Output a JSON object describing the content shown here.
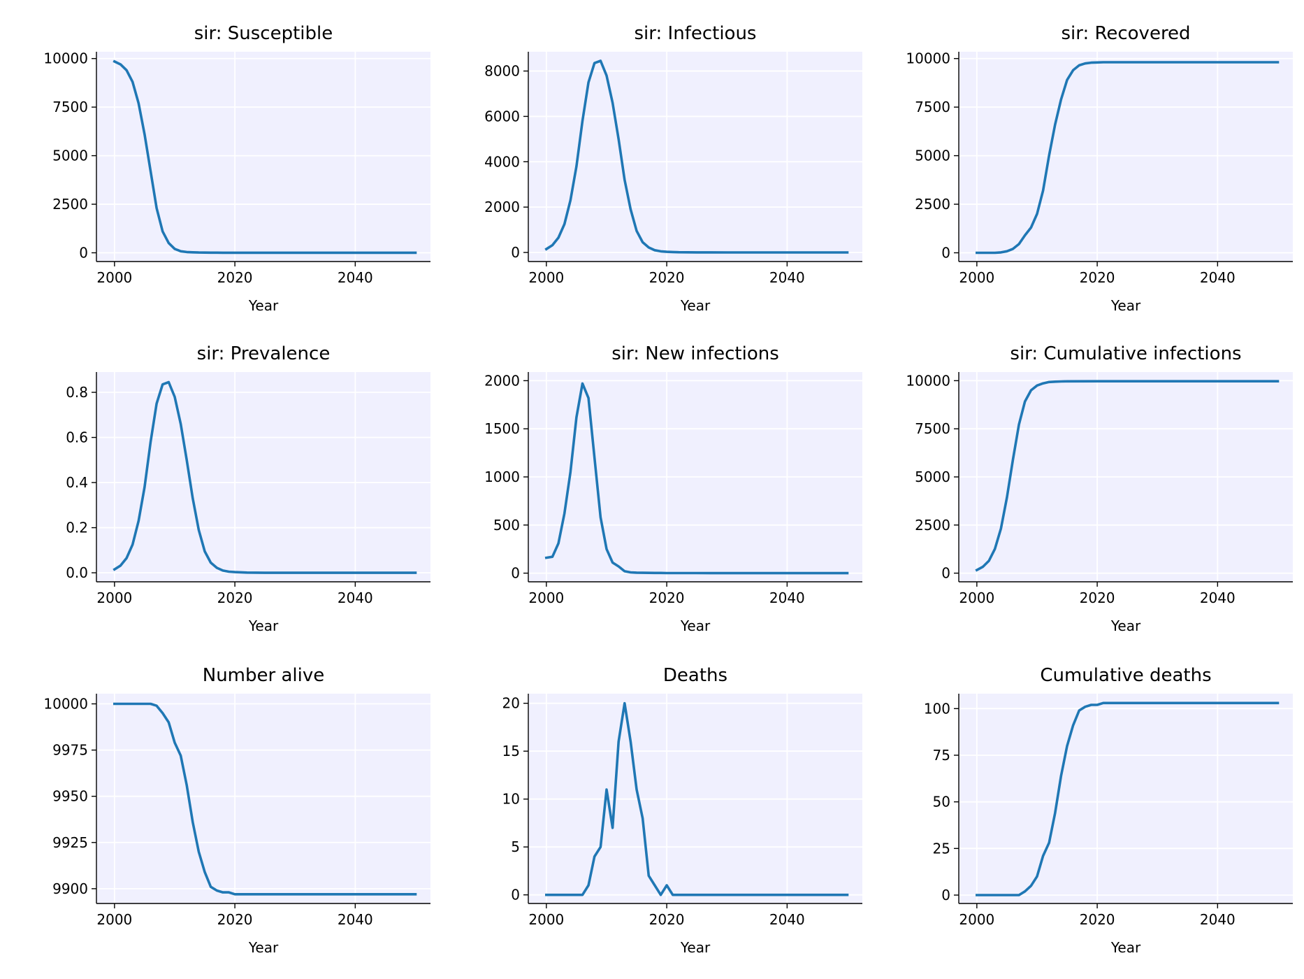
{
  "chart_data": [
    {
      "type": "line",
      "title": "sir: Susceptible",
      "xlabel": "Year",
      "ylabel": "",
      "xlim": [
        1997,
        2052.5
      ],
      "ylim": [
        -450,
        10350
      ],
      "xticks": [
        2000,
        2020,
        2040
      ],
      "yticks": [
        0,
        2500,
        5000,
        7500,
        10000
      ],
      "ytick_labels": [
        "0",
        "2500",
        "5000",
        "7500",
        "10000"
      ],
      "grid": true,
      "x": [
        2000,
        2001,
        2002,
        2003,
        2004,
        2005,
        2006,
        2007,
        2008,
        2009,
        2010,
        2011,
        2012,
        2013,
        2014,
        2015,
        2016,
        2017,
        2018,
        2019,
        2020,
        2025,
        2030,
        2035,
        2040,
        2045,
        2050
      ],
      "y": [
        9850,
        9700,
        9400,
        8800,
        7700,
        6100,
        4200,
        2300,
        1100,
        500,
        200,
        80,
        40,
        25,
        15,
        10,
        8,
        6,
        5,
        4,
        3,
        2,
        2,
        2,
        2,
        2,
        2
      ]
    },
    {
      "type": "line",
      "title": "sir: Infectious",
      "xlabel": "Year",
      "ylabel": "",
      "xlim": [
        1997,
        2052.5
      ],
      "ylim": [
        -400,
        8850
      ],
      "xticks": [
        2000,
        2020,
        2040
      ],
      "yticks": [
        0,
        2000,
        4000,
        6000,
        8000
      ],
      "ytick_labels": [
        "0",
        "2000",
        "4000",
        "6000",
        "8000"
      ],
      "grid": true,
      "x": [
        2000,
        2001,
        2002,
        2003,
        2004,
        2005,
        2006,
        2007,
        2008,
        2009,
        2010,
        2011,
        2012,
        2013,
        2014,
        2015,
        2016,
        2017,
        2018,
        2019,
        2020,
        2021,
        2022,
        2025,
        2030,
        2035,
        2040,
        2045,
        2050
      ],
      "y": [
        150,
        320,
        650,
        1250,
        2300,
        3800,
        5800,
        7500,
        8350,
        8450,
        7800,
        6600,
        5000,
        3200,
        1900,
        950,
        450,
        220,
        100,
        50,
        30,
        20,
        10,
        5,
        2,
        1,
        1,
        1,
        1
      ]
    },
    {
      "type": "line",
      "title": "sir: Recovered",
      "xlabel": "Year",
      "ylabel": "",
      "xlim": [
        1997,
        2052.5
      ],
      "ylim": [
        -450,
        10350
      ],
      "xticks": [
        2000,
        2020,
        2040
      ],
      "yticks": [
        0,
        2500,
        5000,
        7500,
        10000
      ],
      "ytick_labels": [
        "0",
        "2500",
        "5000",
        "7500",
        "10000"
      ],
      "grid": true,
      "x": [
        2000,
        2001,
        2002,
        2003,
        2004,
        2005,
        2006,
        2007,
        2008,
        2009,
        2010,
        2011,
        2012,
        2013,
        2014,
        2015,
        2016,
        2017,
        2018,
        2019,
        2020,
        2021,
        2025,
        2030,
        2035,
        2040,
        2045,
        2050
      ],
      "y": [
        0,
        0,
        0,
        0,
        20,
        80,
        200,
        450,
        900,
        1300,
        2000,
        3200,
        5000,
        6600,
        7900,
        8900,
        9400,
        9650,
        9750,
        9790,
        9800,
        9810,
        9810,
        9810,
        9810,
        9810,
        9810,
        9810
      ]
    },
    {
      "type": "line",
      "title": "sir: Prevalence",
      "xlabel": "Year",
      "ylabel": "",
      "xlim": [
        1997,
        2052.5
      ],
      "ylim": [
        -0.04,
        0.89
      ],
      "xticks": [
        2000,
        2020,
        2040
      ],
      "yticks": [
        0,
        0.2,
        0.4,
        0.6,
        0.8
      ],
      "ytick_labels": [
        "0.0",
        "0.2",
        "0.4",
        "0.6",
        "0.8"
      ],
      "grid": true,
      "x": [
        2000,
        2001,
        2002,
        2003,
        2004,
        2005,
        2006,
        2007,
        2008,
        2009,
        2010,
        2011,
        2012,
        2013,
        2014,
        2015,
        2016,
        2017,
        2018,
        2019,
        2020,
        2022,
        2025,
        2030,
        2035,
        2040,
        2045,
        2050
      ],
      "y": [
        0.015,
        0.032,
        0.065,
        0.125,
        0.23,
        0.38,
        0.58,
        0.75,
        0.835,
        0.845,
        0.78,
        0.66,
        0.5,
        0.33,
        0.19,
        0.095,
        0.045,
        0.022,
        0.01,
        0.005,
        0.003,
        0.001,
        0,
        0,
        0,
        0,
        0,
        0
      ]
    },
    {
      "type": "line",
      "title": "sir: New infections",
      "xlabel": "Year",
      "ylabel": "",
      "xlim": [
        1997,
        2052.5
      ],
      "ylim": [
        -90,
        2090
      ],
      "xticks": [
        2000,
        2020,
        2040
      ],
      "yticks": [
        0,
        500,
        1000,
        1500,
        2000
      ],
      "ytick_labels": [
        "0",
        "500",
        "1000",
        "1500",
        "2000"
      ],
      "grid": true,
      "x": [
        2000,
        2001,
        2002,
        2003,
        2004,
        2005,
        2006,
        2007,
        2008,
        2009,
        2010,
        2011,
        2012,
        2013,
        2014,
        2015,
        2016,
        2017,
        2018,
        2019,
        2020,
        2025,
        2030,
        2035,
        2040,
        2045,
        2050
      ],
      "y": [
        160,
        170,
        310,
        620,
        1050,
        1620,
        1970,
        1820,
        1200,
        580,
        250,
        110,
        70,
        20,
        8,
        5,
        4,
        3,
        2,
        2,
        1,
        1,
        0,
        0,
        0,
        0,
        0
      ]
    },
    {
      "type": "line",
      "title": "sir: Cumulative infections",
      "xlabel": "Year",
      "ylabel": "",
      "xlim": [
        1997,
        2052.5
      ],
      "ylim": [
        -450,
        10450
      ],
      "xticks": [
        2000,
        2020,
        2040
      ],
      "yticks": [
        0,
        2500,
        5000,
        7500,
        10000
      ],
      "ytick_labels": [
        "0",
        "2500",
        "5000",
        "7500",
        "10000"
      ],
      "grid": true,
      "x": [
        2000,
        2001,
        2002,
        2003,
        2004,
        2005,
        2006,
        2007,
        2008,
        2009,
        2010,
        2011,
        2012,
        2013,
        2014,
        2015,
        2020,
        2025,
        2030,
        2035,
        2040,
        2045,
        2050
      ],
      "y": [
        160,
        330,
        640,
        1260,
        2310,
        3930,
        5900,
        7720,
        8920,
        9500,
        9750,
        9860,
        9930,
        9950,
        9960,
        9965,
        9970,
        9970,
        9970,
        9970,
        9970,
        9970,
        9970
      ]
    },
    {
      "type": "line",
      "title": "Number alive",
      "xlabel": "Year",
      "ylabel": "",
      "xlim": [
        1997,
        2052.5
      ],
      "ylim": [
        9892,
        10005.5
      ],
      "xticks": [
        2000,
        2020,
        2040
      ],
      "yticks": [
        9900,
        9925,
        9950,
        9975,
        10000
      ],
      "ytick_labels": [
        "9900",
        "9925",
        "9950",
        "9975",
        "10000"
      ],
      "grid": true,
      "x": [
        2000,
        2001,
        2002,
        2003,
        2004,
        2005,
        2006,
        2007,
        2008,
        2009,
        2010,
        2011,
        2012,
        2013,
        2014,
        2015,
        2016,
        2017,
        2018,
        2019,
        2020,
        2021,
        2025,
        2030,
        2035,
        2040,
        2045,
        2050
      ],
      "y": [
        10000,
        10000,
        10000,
        10000,
        10000,
        10000,
        10000,
        9999,
        9995,
        9990,
        9979,
        9972,
        9956,
        9936,
        9920,
        9909,
        9901,
        9899,
        9898,
        9898,
        9897,
        9897,
        9897,
        9897,
        9897,
        9897,
        9897,
        9897
      ]
    },
    {
      "type": "line",
      "title": "Deaths",
      "xlabel": "Year",
      "ylabel": "",
      "xlim": [
        1997,
        2052.5
      ],
      "ylim": [
        -0.9,
        21
      ],
      "xticks": [
        2000,
        2020,
        2040
      ],
      "yticks": [
        0,
        5,
        10,
        15,
        20
      ],
      "ytick_labels": [
        "0",
        "5",
        "10",
        "15",
        "20"
      ],
      "grid": true,
      "x": [
        2000,
        2001,
        2002,
        2003,
        2004,
        2005,
        2006,
        2007,
        2008,
        2009,
        2010,
        2011,
        2012,
        2013,
        2014,
        2015,
        2016,
        2017,
        2018,
        2019,
        2020,
        2021,
        2022,
        2025,
        2030,
        2035,
        2040,
        2045,
        2050
      ],
      "y": [
        0,
        0,
        0,
        0,
        0,
        0,
        0,
        1,
        4,
        5,
        11,
        7,
        16,
        20,
        16,
        11,
        8,
        2,
        1,
        0,
        1,
        0,
        0,
        0,
        0,
        0,
        0,
        0,
        0
      ]
    },
    {
      "type": "line",
      "title": "Cumulative deaths",
      "xlabel": "Year",
      "ylabel": "",
      "xlim": [
        1997,
        2052.5
      ],
      "ylim": [
        -4.5,
        108
      ],
      "xticks": [
        2000,
        2020,
        2040
      ],
      "yticks": [
        0,
        25,
        50,
        75,
        100
      ],
      "ytick_labels": [
        "0",
        "25",
        "50",
        "75",
        "100"
      ],
      "grid": true,
      "x": [
        2000,
        2001,
        2002,
        2003,
        2004,
        2005,
        2006,
        2007,
        2008,
        2009,
        2010,
        2011,
        2012,
        2013,
        2014,
        2015,
        2016,
        2017,
        2018,
        2019,
        2020,
        2021,
        2022,
        2025,
        2030,
        2035,
        2040,
        2045,
        2050
      ],
      "y": [
        0,
        0,
        0,
        0,
        0,
        0,
        0,
        0,
        2,
        5,
        10,
        21,
        28,
        44,
        64,
        80,
        91,
        99,
        101,
        102,
        102,
        103,
        103,
        103,
        103,
        103,
        103,
        103,
        103
      ]
    }
  ]
}
